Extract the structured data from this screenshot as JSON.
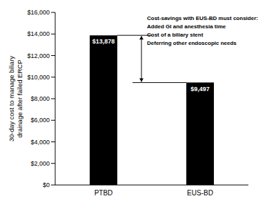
{
  "chart_data": {
    "type": "bar",
    "categories": [
      "PTBD",
      "EUS-BD"
    ],
    "values": [
      13878,
      9497
    ],
    "value_labels": [
      "$13,878",
      "$9,497"
    ],
    "color": "#000000",
    "ylim": [
      0,
      16000
    ],
    "yticks": [
      {
        "value": 0,
        "label": "$0"
      },
      {
        "value": 2000,
        "label": "$2,000"
      },
      {
        "value": 4000,
        "label": "$4,000"
      },
      {
        "value": 6000,
        "label": "$6,000"
      },
      {
        "value": 8000,
        "label": "$8,000"
      },
      {
        "value": 10000,
        "label": "$10,000"
      },
      {
        "value": 12000,
        "label": "$12,000"
      },
      {
        "value": 14000,
        "label": "$14,000"
      },
      {
        "value": 16000,
        "label": "$16,000"
      }
    ],
    "ylabel": "30-day cost to manage biliary drainage after failed ERCP",
    "annotation": {
      "title": "Cost-savings with EUS-BD must consider:",
      "lines": [
        "Added GI and anesthesia time",
        "Cost of a biliary stent",
        "Deferring other endoscopic needs"
      ]
    },
    "data_labels": true,
    "grid": false
  }
}
